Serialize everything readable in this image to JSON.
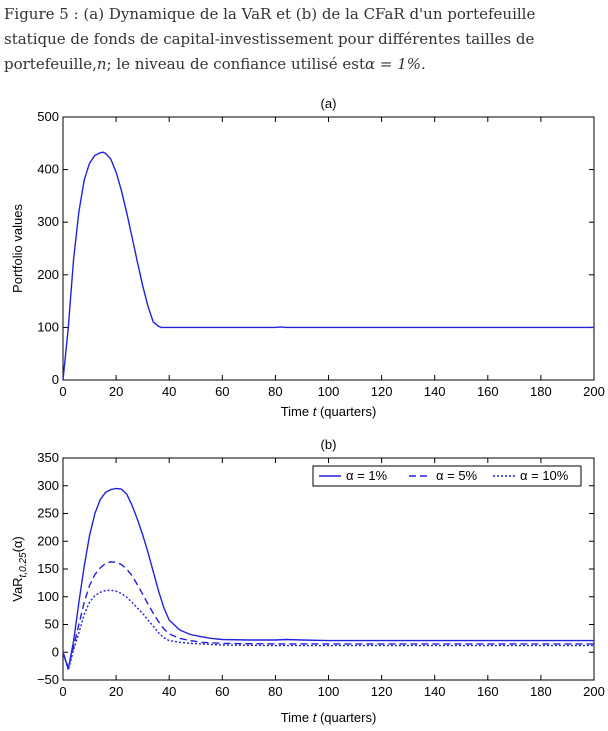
{
  "caption": {
    "line1": "Figure 5 : (a) Dynamique de la VaR et (b) de la CFaR d'un portefeuille",
    "line2": "statique de fonds de capital-investissement pour différentes tailles de",
    "line3_text": "portefeuille,",
    "line3_var": "n",
    "line3_rest": "; le niveau de confiance utilisé est",
    "line3_formula": "α  =  1%."
  },
  "chart_data": [
    {
      "type": "line",
      "title": "(a)",
      "xlabel_prefix": "Time ",
      "xlabel_var": "t",
      "xlabel_suffix": " (quarters)",
      "ylabel": "Portfolio values",
      "xlim": [
        0,
        200
      ],
      "ylim": [
        0,
        500
      ],
      "xticks": [
        0,
        20,
        40,
        60,
        80,
        100,
        120,
        140,
        160,
        180,
        200
      ],
      "yticks": [
        0,
        100,
        200,
        300,
        400,
        500
      ],
      "grid": false,
      "series": [
        {
          "color": "#2222dd",
          "style": "solid",
          "x": [
            0,
            2,
            4,
            6,
            8,
            10,
            12,
            14,
            15,
            16,
            18,
            20,
            22,
            24,
            26,
            28,
            30,
            32,
            34,
            36,
            37,
            38,
            40,
            60,
            80,
            82,
            84,
            100,
            120,
            140,
            160,
            180,
            200
          ],
          "y": [
            0,
            100,
            230,
            320,
            380,
            412,
            427,
            432,
            433,
            431,
            420,
            395,
            360,
            318,
            272,
            225,
            180,
            140,
            110,
            102,
            100,
            100,
            100,
            100,
            100,
            101,
            100,
            100,
            100,
            100,
            100,
            100,
            100
          ]
        }
      ]
    },
    {
      "type": "line",
      "title": "(b)",
      "xlabel_prefix": "Time ",
      "xlabel_var": "t",
      "xlabel_suffix": " (quarters)",
      "ylabel_base": "VaR",
      "ylabel_sub": "t,0.25",
      "ylabel_arg": "(α)",
      "xlim": [
        0,
        200
      ],
      "ylim": [
        -50,
        350
      ],
      "xticks": [
        0,
        20,
        40,
        60,
        80,
        100,
        120,
        140,
        160,
        180,
        200
      ],
      "yticks": [
        -50,
        0,
        50,
        100,
        150,
        200,
        250,
        300,
        350
      ],
      "grid": false,
      "legend_position": "top-right",
      "series": [
        {
          "name": "α = 1%",
          "color": "#2222dd",
          "style": "solid",
          "x": [
            0,
            2,
            4,
            6,
            8,
            10,
            12,
            14,
            16,
            18,
            20,
            22,
            24,
            26,
            28,
            30,
            32,
            34,
            36,
            38,
            40,
            44,
            48,
            52,
            56,
            60,
            70,
            80,
            84,
            90,
            100,
            120,
            140,
            160,
            180,
            200
          ],
          "y": [
            0,
            -30,
            20,
            90,
            155,
            210,
            250,
            275,
            288,
            293,
            295,
            294,
            285,
            265,
            240,
            212,
            180,
            145,
            110,
            80,
            58,
            40,
            32,
            28,
            25,
            23,
            22,
            22,
            23,
            22,
            21,
            21,
            21,
            21,
            21,
            21
          ]
        },
        {
          "name": "α = 5%",
          "color": "#2222dd",
          "style": "dashed",
          "x": [
            0,
            2,
            4,
            6,
            8,
            10,
            12,
            14,
            16,
            18,
            20,
            22,
            24,
            26,
            28,
            30,
            32,
            34,
            36,
            38,
            40,
            44,
            48,
            52,
            56,
            60,
            80,
            100,
            120,
            140,
            160,
            180,
            200
          ],
          "y": [
            0,
            -28,
            10,
            50,
            90,
            120,
            140,
            152,
            160,
            163,
            162,
            158,
            150,
            138,
            122,
            105,
            87,
            70,
            55,
            42,
            33,
            25,
            21,
            18,
            17,
            16,
            15,
            15,
            15,
            15,
            15,
            15,
            15
          ]
        },
        {
          "name": "α = 10%",
          "color": "#2222dd",
          "style": "dotted",
          "x": [
            0,
            2,
            4,
            6,
            8,
            10,
            12,
            14,
            16,
            18,
            20,
            22,
            24,
            26,
            28,
            30,
            32,
            34,
            36,
            38,
            40,
            44,
            48,
            52,
            56,
            60,
            80,
            100,
            120,
            140,
            160,
            180,
            200
          ],
          "y": [
            0,
            -32,
            5,
            35,
            68,
            90,
            102,
            108,
            111,
            112,
            110,
            106,
            99,
            90,
            80,
            70,
            58,
            47,
            35,
            26,
            21,
            18,
            16,
            15,
            14,
            13,
            12,
            12,
            12,
            12,
            12,
            12,
            12
          ]
        }
      ]
    }
  ]
}
